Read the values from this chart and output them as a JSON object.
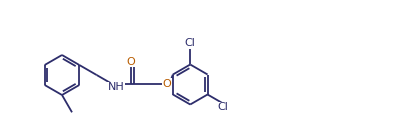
{
  "background_color": "#ffffff",
  "bond_color": "#2d2d6b",
  "o_color": "#b85c00",
  "n_color": "#2d2d6b",
  "cl_color": "#2d2d6b",
  "figsize": [
    3.95,
    1.37
  ],
  "dpi": 100,
  "font_size": 8.0,
  "bond_lw": 1.3,
  "xlim": [
    0,
    3.95
  ],
  "ylim": [
    0,
    1.37
  ]
}
